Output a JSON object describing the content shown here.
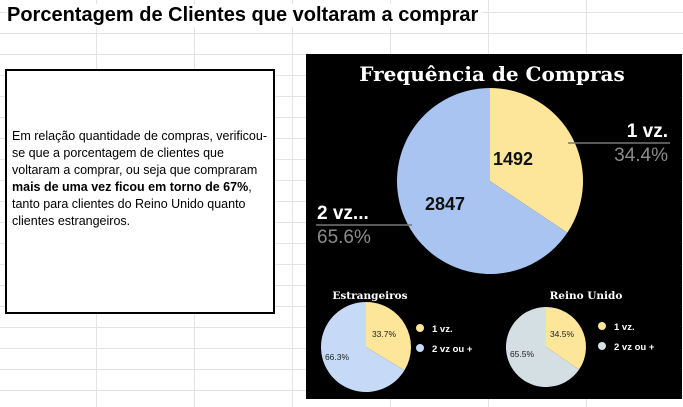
{
  "sheet": {
    "title": "Porcentagem de Clientes que voltaram a comprar"
  },
  "textbox": {
    "part1": "Em relação quantidade de compras, verificou-se que a porcentagem de clientes que voltaram a comprar, ou seja que compraram ",
    "bold": "mais de uma vez ficou em torno de 67%",
    "part2": ", tanto para clientes do Reino Unido quanto clientes estrangeiros."
  },
  "colors": {
    "panel_bg": "#000000",
    "one_time": "#fde69a",
    "more_main": "#a9c4f0",
    "more_foreign": "#c6d9f7",
    "more_uk": "#d3dfe3"
  },
  "chart_data": [
    {
      "type": "pie",
      "title": "Frequência de Compras",
      "slices": [
        {
          "label": "1 vz.",
          "value": 1492,
          "percent": "34.4%",
          "color": "#fde69a"
        },
        {
          "label": "2 vz...",
          "value": 2847,
          "percent": "65.6%",
          "color": "#a9c4f0"
        }
      ]
    },
    {
      "type": "pie",
      "title": "Estrangeiros",
      "slices": [
        {
          "label": "1 vz.",
          "value": 33.7,
          "percent": "33.7%",
          "color": "#fde69a"
        },
        {
          "label": "2 vz ou +",
          "value": 66.3,
          "percent": "66.3%",
          "color": "#c6d9f7"
        }
      ],
      "legend": [
        "1 vz.",
        "2 vz ou +"
      ],
      "legend_position": "right"
    },
    {
      "type": "pie",
      "title": "Reino Unido",
      "slices": [
        {
          "label": "1 vz.",
          "value": 34.5,
          "percent": "34.5%",
          "color": "#fde69a"
        },
        {
          "label": "2 vz ou +",
          "value": 65.5,
          "percent": "65.5%",
          "color": "#d3dfe3"
        }
      ],
      "legend": [
        "1 vz.",
        "2 vz ou +"
      ],
      "legend_position": "right"
    }
  ]
}
